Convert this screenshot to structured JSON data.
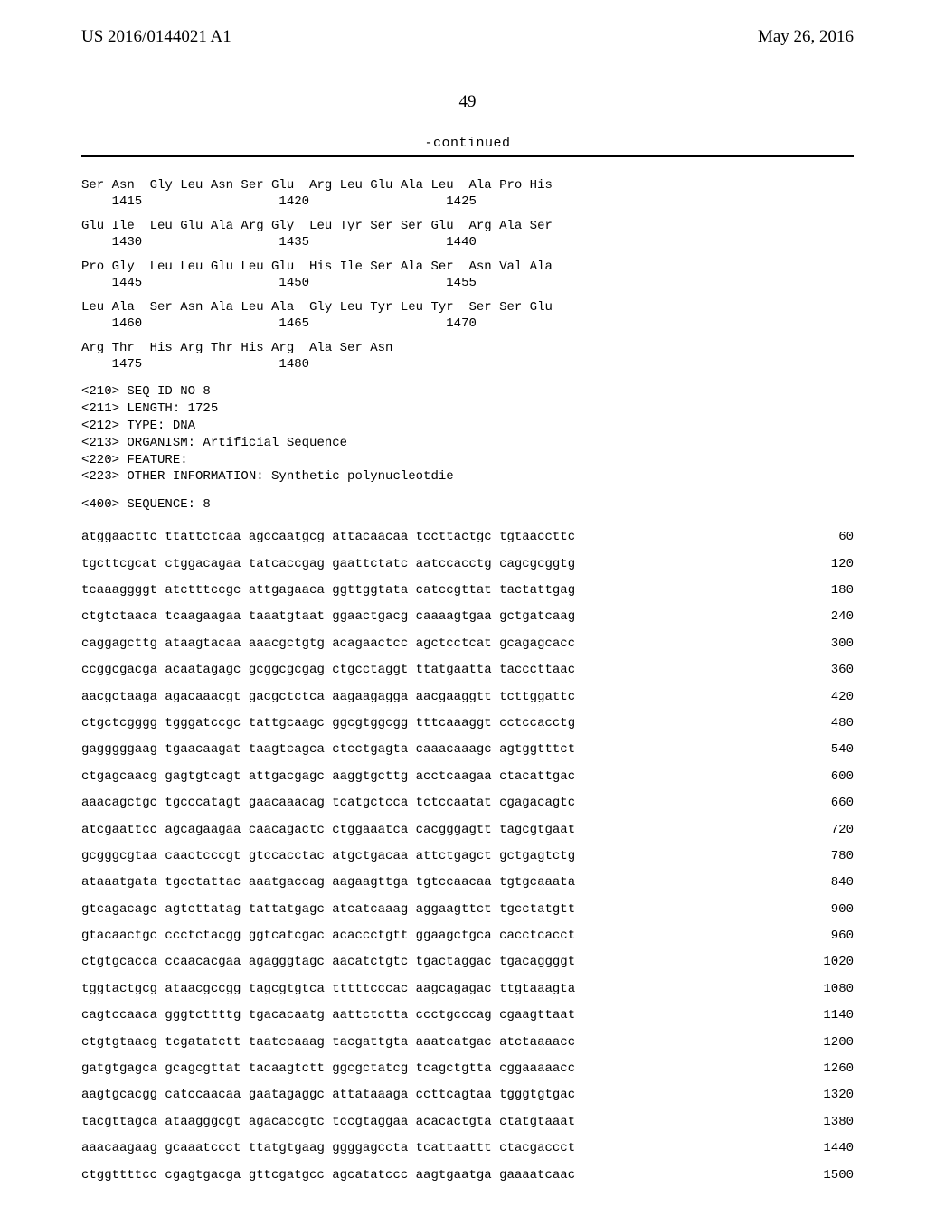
{
  "header": {
    "pub_number": "US 2016/0144021 A1",
    "pub_date": "May 26, 2016"
  },
  "page_number": "49",
  "continued_label": "-continued",
  "protein_rows": [
    {
      "aa": "Ser Asn  Gly Leu Asn Ser Glu  Arg Leu Glu Ala Leu  Ala Pro His",
      "nums": "    1415                  1420                  1425"
    },
    {
      "aa": "Glu Ile  Leu Glu Ala Arg Gly  Leu Tyr Ser Ser Glu  Arg Ala Ser",
      "nums": "    1430                  1435                  1440"
    },
    {
      "aa": "Pro Gly  Leu Leu Glu Leu Glu  His Ile Ser Ala Ser  Asn Val Ala",
      "nums": "    1445                  1450                  1455"
    },
    {
      "aa": "Leu Ala  Ser Asn Ala Leu Ala  Gly Leu Tyr Leu Tyr  Ser Ser Glu",
      "nums": "    1460                  1465                  1470"
    },
    {
      "aa": "Arg Thr  His Arg Thr His Arg  Ala Ser Asn",
      "nums": "    1475                  1480"
    }
  ],
  "meta": {
    "l1": "<210> SEQ ID NO 8",
    "l2": "<211> LENGTH: 1725",
    "l3": "<212> TYPE: DNA",
    "l4": "<213> ORGANISM: Artificial Sequence",
    "l5": "<220> FEATURE:",
    "l6": "<223> OTHER INFORMATION: Synthetic polynucleotdie",
    "l7": "<400> SEQUENCE: 8"
  },
  "dna": [
    {
      "s": "atggaacttc ttattctcaa agccaatgcg attacaacaa tccttactgc tgtaaccttc",
      "n": "60"
    },
    {
      "s": "tgcttcgcat ctggacagaa tatcaccgag gaattctatc aatccacctg cagcgcggtg",
      "n": "120"
    },
    {
      "s": "tcaaaggggt atctttccgc attgagaaca ggttggtata catccgttat tactattgag",
      "n": "180"
    },
    {
      "s": "ctgtctaaca tcaagaagaa taaatgtaat ggaactgacg caaaagtgaa gctgatcaag",
      "n": "240"
    },
    {
      "s": "caggagcttg ataagtacaa aaacgctgtg acagaactcc agctcctcat gcagagcacc",
      "n": "300"
    },
    {
      "s": "ccggcgacga acaatagagc gcggcgcgag ctgcctaggt ttatgaatta tacccttaac",
      "n": "360"
    },
    {
      "s": "aacgctaaga agacaaacgt gacgctctca aagaagagga aacgaaggtt tcttggattc",
      "n": "420"
    },
    {
      "s": "ctgctcgggg tgggatccgc tattgcaagc ggcgtggcgg tttcaaaggt cctccacctg",
      "n": "480"
    },
    {
      "s": "gagggggaag tgaacaagat taagtcagca ctcctgagta caaacaaagc agtggtttct",
      "n": "540"
    },
    {
      "s": "ctgagcaacg gagtgtcagt attgacgagc aaggtgcttg acctcaagaa ctacattgac",
      "n": "600"
    },
    {
      "s": "aaacagctgc tgcccatagt gaacaaacag tcatgctcca tctccaatat cgagacagtc",
      "n": "660"
    },
    {
      "s": "atcgaattcc agcagaagaa caacagactc ctggaaatca cacgggagtt tagcgtgaat",
      "n": "720"
    },
    {
      "s": "gcgggcgtaa caactcccgt gtccacctac atgctgacaa attctgagct gctgagtctg",
      "n": "780"
    },
    {
      "s": "ataaatgata tgcctattac aaatgaccag aagaagttga tgtccaacaa tgtgcaaata",
      "n": "840"
    },
    {
      "s": "gtcagacagc agtcttatag tattatgagc atcatcaaag aggaagttct tgcctatgtt",
      "n": "900"
    },
    {
      "s": "gtacaactgc ccctctacgg ggtcatcgac acaccctgtt ggaagctgca cacctcacct",
      "n": "960"
    },
    {
      "s": "ctgtgcacca ccaacacgaa agagggtagc aacatctgtc tgactaggac tgacaggggt",
      "n": "1020"
    },
    {
      "s": "tggtactgcg ataacgccgg tagcgtgtca tttttcccac aagcagagac ttgtaaagta",
      "n": "1080"
    },
    {
      "s": "cagtccaaca gggtcttttg tgacacaatg aattctctta ccctgcccag cgaagttaat",
      "n": "1140"
    },
    {
      "s": "ctgtgtaacg tcgatatctt taatccaaag tacgattgta aaatcatgac atctaaaacc",
      "n": "1200"
    },
    {
      "s": "gatgtgagca gcagcgttat tacaagtctt ggcgctatcg tcagctgtta cggaaaaacc",
      "n": "1260"
    },
    {
      "s": "aagtgcacgg catccaacaa gaatagaggc attataaaga ccttcagtaa tgggtgtgac",
      "n": "1320"
    },
    {
      "s": "tacgttagca ataagggcgt agacaccgtc tccgtaggaa acacactgta ctatgtaaat",
      "n": "1380"
    },
    {
      "s": "aaacaagaag gcaaatccct ttatgtgaag ggggagccta tcattaattt ctacgaccct",
      "n": "1440"
    },
    {
      "s": "ctggttttcc cgagtgacga gttcgatgcc agcatatccc aagtgaatga gaaaatcaac",
      "n": "1500"
    }
  ]
}
